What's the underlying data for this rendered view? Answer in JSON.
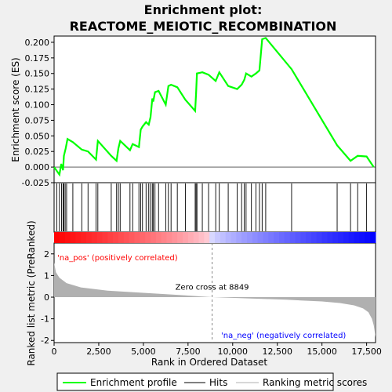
{
  "chart_data": {
    "type": "line",
    "title_lines": [
      "Enrichment plot:",
      "REACTOME_MEIOTIC_RECOMBINATION"
    ],
    "es_panel": {
      "ylabel": "Enrichment score (ES)",
      "ylim": [
        -0.025,
        0.21
      ],
      "yticks": [
        -0.025,
        0.0,
        0.025,
        0.05,
        0.075,
        0.1,
        0.125,
        0.15,
        0.175,
        0.2
      ],
      "ytick_labels": [
        "-0.025",
        "0.000",
        "0.025",
        "0.050",
        "0.075",
        "0.100",
        "0.125",
        "0.150",
        "0.175",
        "0.200"
      ],
      "x": [
        0,
        300,
        400,
        500,
        550,
        650,
        750,
        1050,
        1550,
        1900,
        2350,
        2450,
        3200,
        3500,
        3600,
        3700,
        4250,
        4400,
        4750,
        4850,
        4950,
        5150,
        5300,
        5400,
        5500,
        5550,
        5650,
        5850,
        6250,
        6400,
        6550,
        6900,
        7350,
        7900,
        7950,
        8000,
        8300,
        8650,
        9050,
        9250,
        9750,
        10250,
        10500,
        10650,
        10750,
        11050,
        11300,
        11500,
        11650,
        11850,
        13300,
        15850,
        16600,
        17000,
        17500,
        17900
      ],
      "es": [
        0.0,
        -0.012,
        0.005,
        -0.005,
        0.018,
        0.03,
        0.045,
        0.04,
        0.028,
        0.025,
        0.012,
        0.042,
        0.018,
        0.01,
        0.03,
        0.042,
        0.027,
        0.037,
        0.032,
        0.06,
        0.065,
        0.072,
        0.068,
        0.08,
        0.11,
        0.105,
        0.12,
        0.122,
        0.1,
        0.13,
        0.132,
        0.128,
        0.108,
        0.09,
        0.118,
        0.15,
        0.152,
        0.148,
        0.138,
        0.152,
        0.13,
        0.125,
        0.132,
        0.14,
        0.15,
        0.145,
        0.15,
        0.155,
        0.205,
        0.207,
        0.157,
        0.035,
        0.01,
        0.018,
        0.017,
        0.0
      ],
      "line_color": "#00ff00"
    },
    "hits": {
      "positions": [
        150,
        300,
        420,
        500,
        550,
        620,
        700,
        1050,
        1550,
        1900,
        2350,
        2450,
        3200,
        3500,
        3600,
        3700,
        4250,
        4400,
        4750,
        4850,
        4950,
        5150,
        5300,
        5400,
        5500,
        5550,
        5650,
        5850,
        6250,
        6400,
        6550,
        6900,
        7350,
        7900,
        7950,
        8000,
        8300,
        8650,
        9050,
        9250,
        9750,
        10250,
        10500,
        10650,
        10750,
        11050,
        11300,
        11500,
        11650,
        11850,
        13300,
        15850,
        16600,
        17000,
        17500
      ]
    },
    "metric_panel": {
      "ylabel": "Ranked list metric (PreRanked)",
      "ylim": [
        -2.1,
        2.5
      ],
      "yticks": [
        -2,
        -1,
        0,
        1,
        2
      ],
      "ytick_labels": [
        "-2",
        "-1",
        "0",
        "1",
        "2"
      ],
      "fill_color": "#b0b0b0",
      "zero_cross": 8849,
      "zero_cross_label": "Zero cross at 8849",
      "pos_label": "'na_pos' (positively correlated)",
      "neg_label": "'na_neg' (negatively correlated)",
      "pos_color": "#ff0000",
      "neg_color": "#0000ff",
      "profile": [
        [
          0,
          1.6
        ],
        [
          100,
          1.15
        ],
        [
          300,
          0.9
        ],
        [
          700,
          0.65
        ],
        [
          1500,
          0.45
        ],
        [
          3000,
          0.3
        ],
        [
          5000,
          0.2
        ],
        [
          7000,
          0.1
        ],
        [
          8849,
          0.0
        ],
        [
          11000,
          -0.06
        ],
        [
          13000,
          -0.12
        ],
        [
          15000,
          -0.2
        ],
        [
          16000,
          -0.27
        ],
        [
          16800,
          -0.38
        ],
        [
          17300,
          -0.52
        ],
        [
          17600,
          -0.7
        ],
        [
          17800,
          -1.0
        ],
        [
          17900,
          -1.3
        ],
        [
          18000,
          -1.85
        ]
      ]
    },
    "xaxis": {
      "xlabel": "Rank in Ordered Dataset",
      "xlim": [
        0,
        18000
      ],
      "xticks": [
        0,
        2500,
        5000,
        7500,
        10000,
        12500,
        15000,
        17500
      ],
      "xtick_labels": [
        "0",
        "2,500",
        "5,000",
        "7,500",
        "10,000",
        "12,500",
        "15,000",
        "17,500"
      ],
      "n_genes": 18000
    },
    "legend": {
      "placement": "bottom",
      "entries": [
        {
          "label": "Enrichment profile",
          "color": "#00ff00",
          "kind": "line"
        },
        {
          "label": "Hits",
          "color": "#000000",
          "kind": "line"
        },
        {
          "label": "Ranking metric scores",
          "color": "#b0b0b0",
          "kind": "line"
        }
      ]
    }
  }
}
